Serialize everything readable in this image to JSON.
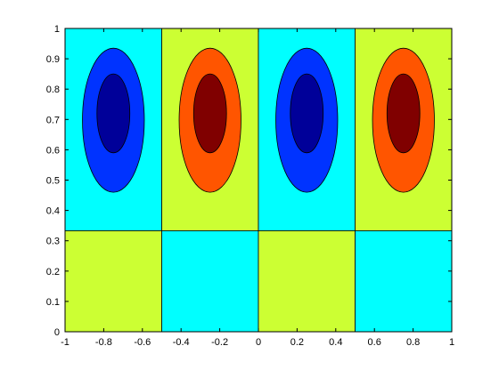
{
  "chart_data": {
    "type": "contourf",
    "title": "",
    "xlabel": "",
    "ylabel": "",
    "xlim": [
      -1,
      1
    ],
    "ylim": [
      0,
      1
    ],
    "grid": false,
    "legend": "none",
    "x_ticks": [
      "-1",
      "-0.8",
      "-0.6",
      "-0.4",
      "-0.2",
      "0",
      "0.2",
      "0.4",
      "0.6",
      "0.8",
      "1"
    ],
    "y_ticks": [
      "0",
      "0.1",
      "0.2",
      "0.3",
      "0.4",
      "0.5",
      "0.6",
      "0.7",
      "0.8",
      "0.9",
      "1"
    ],
    "x_tick_values": [
      -1,
      -0.8,
      -0.6,
      -0.4,
      -0.2,
      0,
      0.2,
      0.4,
      0.6,
      0.8,
      1
    ],
    "y_tick_values": [
      0,
      0.1,
      0.2,
      0.3,
      0.4,
      0.5,
      0.6,
      0.7,
      0.8,
      0.9,
      1
    ],
    "level_colors": {
      "background_negative": "#00FFFF",
      "background_positive": "#CCFF33",
      "mid_negative": "#0033FF",
      "deep_negative": "#000099",
      "mid_positive": "#FF5500",
      "deep_positive": "#800000",
      "contour_line": "#000000"
    },
    "regions": [
      {
        "name": "upper-band-1",
        "level": "background_negative",
        "x": [
          -1,
          -0.5
        ],
        "y": [
          0.333,
          1
        ]
      },
      {
        "name": "upper-band-2",
        "level": "background_positive",
        "x": [
          -0.5,
          0
        ],
        "y": [
          0.333,
          1
        ]
      },
      {
        "name": "upper-band-3",
        "level": "background_negative",
        "x": [
          0,
          0.5
        ],
        "y": [
          0.333,
          1
        ]
      },
      {
        "name": "upper-band-4",
        "level": "background_positive",
        "x": [
          0.5,
          1
        ],
        "y": [
          0.333,
          1
        ]
      },
      {
        "name": "lower-band-1",
        "level": "background_positive",
        "x": [
          -1,
          -0.5
        ],
        "y": [
          0,
          0.333
        ]
      },
      {
        "name": "lower-band-2",
        "level": "background_negative",
        "x": [
          -0.5,
          0
        ],
        "y": [
          0,
          0.333
        ]
      },
      {
        "name": "lower-band-3",
        "level": "background_positive",
        "x": [
          0,
          0.5
        ],
        "y": [
          0,
          0.333
        ]
      },
      {
        "name": "lower-band-4",
        "level": "background_negative",
        "x": [
          0.5,
          1
        ],
        "y": [
          0,
          0.333
        ]
      }
    ],
    "cells": [
      {
        "cx": -0.75,
        "sign": "negative",
        "outer": {
          "half_width": 0.16,
          "y": [
            0.46,
            0.935
          ]
        },
        "inner": {
          "half_width": 0.085,
          "y": [
            0.59,
            0.85
          ]
        }
      },
      {
        "cx": -0.25,
        "sign": "positive",
        "outer": {
          "half_width": 0.16,
          "y": [
            0.46,
            0.935
          ]
        },
        "inner": {
          "half_width": 0.085,
          "y": [
            0.59,
            0.85
          ]
        }
      },
      {
        "cx": 0.25,
        "sign": "negative",
        "outer": {
          "half_width": 0.16,
          "y": [
            0.46,
            0.935
          ]
        },
        "inner": {
          "half_width": 0.085,
          "y": [
            0.59,
            0.85
          ]
        }
      },
      {
        "cx": 0.75,
        "sign": "positive",
        "outer": {
          "half_width": 0.16,
          "y": [
            0.46,
            0.935
          ]
        },
        "inner": {
          "half_width": 0.085,
          "y": [
            0.59,
            0.85
          ]
        }
      }
    ]
  }
}
